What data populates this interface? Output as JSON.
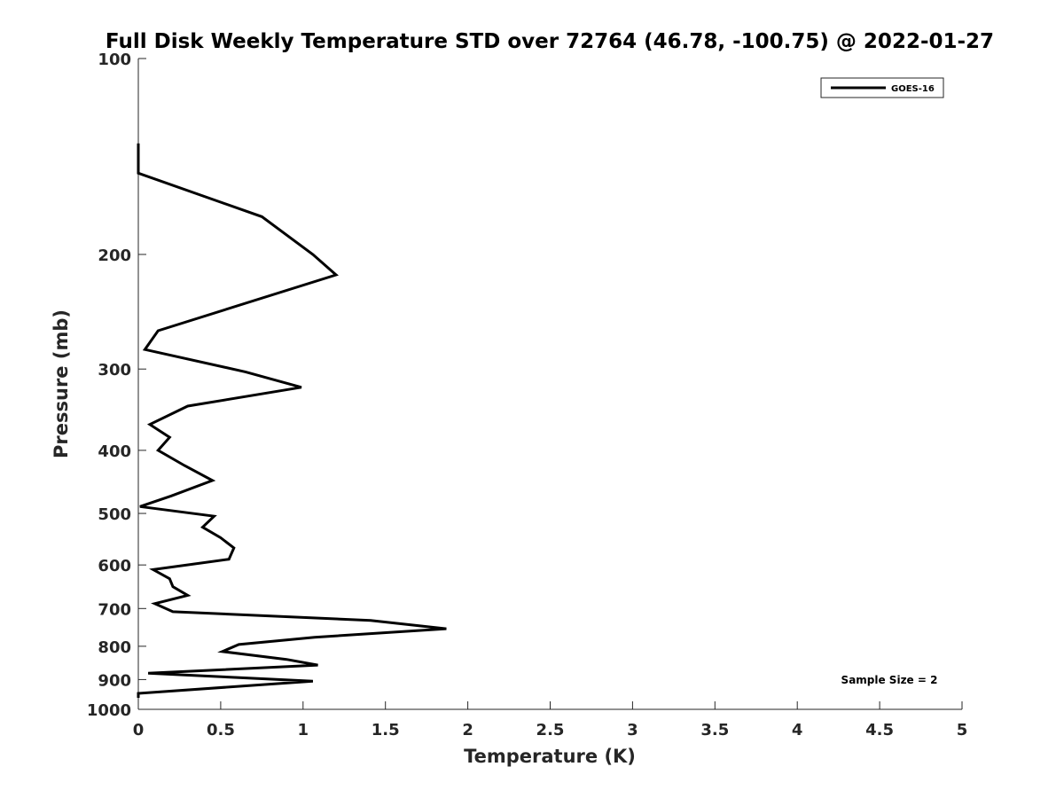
{
  "chart_data": {
    "type": "line",
    "title": "Full Disk Weekly Temperature STD over 72764 (46.78, -100.75) @ 2022-01-27",
    "xlabel": "Temperature (K)",
    "ylabel": "Pressure (mb)",
    "xlim": [
      0,
      5
    ],
    "ylim": [
      100,
      1000
    ],
    "y_scale": "log",
    "y_reversed": true,
    "grid": false,
    "legend_position": "top-right",
    "annotation": "Sample Size = 2",
    "x_ticks": [
      "0",
      "0.5",
      "1",
      "1.5",
      "2",
      "2.5",
      "3",
      "3.5",
      "4",
      "4.5",
      "5"
    ],
    "y_ticks": [
      "100",
      "200",
      "300",
      "400",
      "500",
      "600",
      "700",
      "800",
      "900",
      "1000"
    ],
    "series": [
      {
        "name": "GOES-16",
        "color": "#000000",
        "x": [
          0,
          0,
          0.75,
          1.06,
          1.2,
          0.12,
          0.04,
          0.65,
          0.99,
          0.3,
          0.07,
          0.19,
          0.12,
          0.28,
          0.45,
          0.2,
          0.01,
          0.46,
          0.39,
          0.5,
          0.58,
          0.55,
          0.09,
          0.19,
          0.21,
          0.3,
          0.1,
          0.21,
          1.41,
          1.87,
          1.07,
          0.61,
          0.51,
          0.9,
          1.09,
          0.06,
          1.06,
          0,
          0
        ],
        "y": [
          135,
          150,
          175,
          200,
          215,
          262,
          280,
          303,
          320,
          342,
          365,
          382,
          400,
          422,
          445,
          470,
          488,
          505,
          525,
          545,
          565,
          588,
          610,
          630,
          648,
          668,
          688,
          708,
          730,
          752,
          775,
          795,
          815,
          838,
          855,
          880,
          905,
          945,
          960
        ]
      }
    ]
  }
}
